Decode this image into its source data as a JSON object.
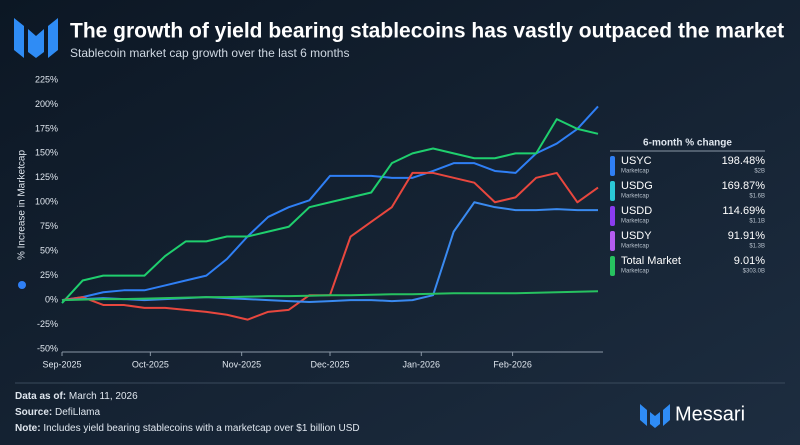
{
  "chart_data": {
    "type": "line",
    "title": "The growth of yield bearing stablecoins has vastly outpaced the market",
    "subtitle": "Stablecoin market cap growth over the last 6 months",
    "y_label": "% Increase in Marketcap",
    "x": [
      0,
      7,
      14,
      21,
      28,
      35,
      42,
      49,
      56,
      63,
      70,
      77,
      84,
      91,
      98,
      105,
      112,
      119,
      126,
      133,
      140,
      147,
      154,
      161,
      168,
      175,
      182
    ],
    "xlim": [
      0,
      182
    ],
    "xticks": [
      {
        "value": 0,
        "label": "Sep-2025"
      },
      {
        "value": 30,
        "label": "Oct-2025"
      },
      {
        "value": 61,
        "label": "Nov-2025"
      },
      {
        "value": 91,
        "label": "Dec-2025"
      },
      {
        "value": 122,
        "label": "Jan-2026"
      },
      {
        "value": 153,
        "label": "Feb-2026"
      }
    ],
    "ylim": [
      -50,
      225
    ],
    "yticks": [
      {
        "value": -50,
        "label": "-50%"
      },
      {
        "value": -25,
        "label": "-25%"
      },
      {
        "value": 0,
        "label": "0%"
      },
      {
        "value": 25,
        "label": "25%"
      },
      {
        "value": 50,
        "label": "50%"
      },
      {
        "value": 75,
        "label": "75%"
      },
      {
        "value": 100,
        "label": "100%"
      },
      {
        "value": 125,
        "label": "125%"
      },
      {
        "value": 150,
        "label": "150%"
      },
      {
        "value": 175,
        "label": "175%"
      },
      {
        "value": 200,
        "label": "200%"
      },
      {
        "value": 225,
        "label": "225%"
      }
    ],
    "legend_title": "6-month % change",
    "series": [
      {
        "name": "USYC",
        "color": "#2f7ff5",
        "legend_color": "#2f7ff5",
        "subtitle": "Marketcap",
        "change_label": "198.48%",
        "marketcap_label": "$2B",
        "values": [
          0,
          3,
          8,
          10,
          10,
          15,
          20,
          25,
          42,
          65,
          85,
          95,
          102,
          127,
          127,
          127,
          125,
          125,
          132,
          140,
          140,
          132,
          130,
          150,
          160,
          175,
          198
        ]
      },
      {
        "name": "USDG",
        "color": "#1fcf6e",
        "legend_color": "#2bc8d6",
        "subtitle": "Marketcap",
        "change_label": "169.87%",
        "marketcap_label": "$1.6B",
        "values": [
          -3,
          20,
          25,
          25,
          25,
          45,
          60,
          60,
          65,
          65,
          70,
          75,
          95,
          100,
          105,
          110,
          140,
          150,
          155,
          150,
          145,
          145,
          150,
          150,
          185,
          175,
          170
        ]
      },
      {
        "name": "USDD",
        "color": "#e8473e",
        "legend_color": "#8a3cf0",
        "subtitle": "Marketcap",
        "change_label": "114.69%",
        "marketcap_label": "$1.1B",
        "values": [
          0,
          3,
          -5,
          -5,
          -8,
          -8,
          -10,
          -12,
          -15,
          -20,
          -12,
          -10,
          5,
          5,
          65,
          80,
          95,
          130,
          130,
          125,
          120,
          100,
          105,
          125,
          130,
          100,
          115
        ]
      },
      {
        "name": "USDY",
        "color": "#3a8af0",
        "legend_color": "#b45cf0",
        "subtitle": "Marketcap",
        "change_label": "91.91%",
        "marketcap_label": "$1.3B",
        "values": [
          0,
          1,
          2,
          1,
          0,
          1,
          2,
          3,
          2,
          1,
          0,
          -1,
          -2,
          -1,
          0,
          0,
          -1,
          0,
          5,
          70,
          100,
          95,
          92,
          92,
          93,
          92,
          92
        ]
      },
      {
        "name": "Total Market",
        "color": "#27c260",
        "legend_color": "#27c260",
        "subtitle": "Marketcap",
        "change_label": "9.01%",
        "marketcap_label": "$303.0B",
        "values": [
          0,
          0.5,
          1,
          1,
          1.5,
          2,
          2.5,
          3,
          3,
          3.5,
          4,
          4,
          4.5,
          5,
          5,
          5.5,
          6,
          6,
          6.5,
          7,
          7,
          7,
          7,
          7.5,
          8,
          8.5,
          9
        ]
      }
    ]
  },
  "footer": [
    {
      "label": "Data as of:",
      "text": "March 11, 2026"
    },
    {
      "label": "Source:",
      "text": "DefiLlama"
    },
    {
      "label": "Note:",
      "text": "Includes yield bearing stablecoins with a marketcap over $1 billion USD"
    }
  ],
  "brand": "Messari"
}
